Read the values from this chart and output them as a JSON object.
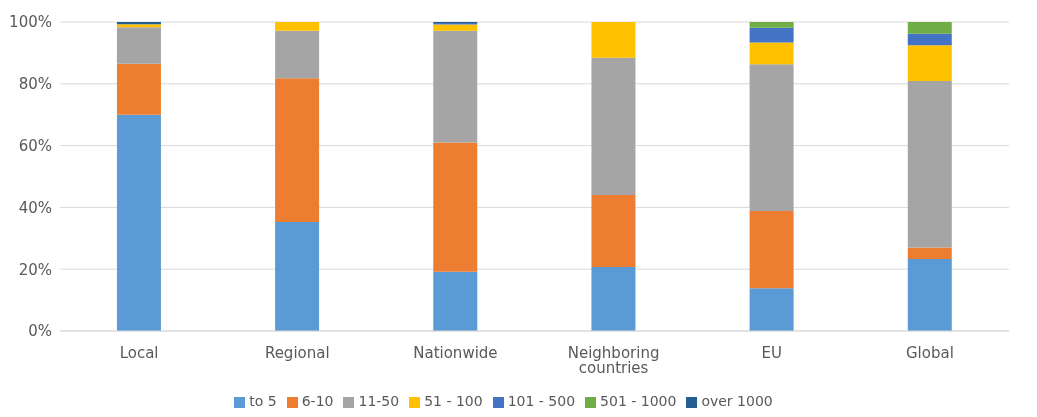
{
  "chart_data": {
    "type": "bar",
    "stacked": true,
    "categories": [
      "Local",
      "Regional",
      "Nationwide",
      "Neighboring countries",
      "EU",
      "Global"
    ],
    "series": [
      {
        "name": "to 5",
        "color": "#5b9bd5",
        "values": [
          70,
          35.3,
          19.2,
          20.7,
          13.8,
          23.3
        ]
      },
      {
        "name": "6-10",
        "color": "#ed7d31",
        "values": [
          16.5,
          46.5,
          41.8,
          23.3,
          25,
          3.7
        ]
      },
      {
        "name": "11-50",
        "color": "#a5a5a5",
        "values": [
          11.8,
          15.4,
          36.2,
          44.4,
          47.5,
          53.9
        ]
      },
      {
        "name": "51 - 100",
        "color": "#ffc000",
        "values": [
          1,
          2.8,
          2,
          11.6,
          7.1,
          11.6
        ]
      },
      {
        "name": "101 - 500",
        "color": "#4472c4",
        "values": [
          0,
          0,
          0.5,
          0,
          4.7,
          3.7
        ]
      },
      {
        "name": "501 - 1000",
        "color": "#70ad47",
        "values": [
          0,
          0,
          0,
          0,
          1.9,
          3.8
        ]
      },
      {
        "name": "over 1000",
        "color": "#255e91",
        "values": [
          0.7,
          0,
          0.3,
          0,
          0,
          0
        ]
      }
    ],
    "ylim": [
      0,
      100
    ],
    "yticks": [
      {
        "value": 0,
        "label": "0%"
      },
      {
        "value": 20,
        "label": "20%"
      },
      {
        "value": 40,
        "label": "40%"
      },
      {
        "value": 60,
        "label": "60%"
      },
      {
        "value": 80,
        "label": "80%"
      },
      {
        "value": 100,
        "label": "100%"
      }
    ],
    "grid": "y",
    "legend": "bottom"
  }
}
